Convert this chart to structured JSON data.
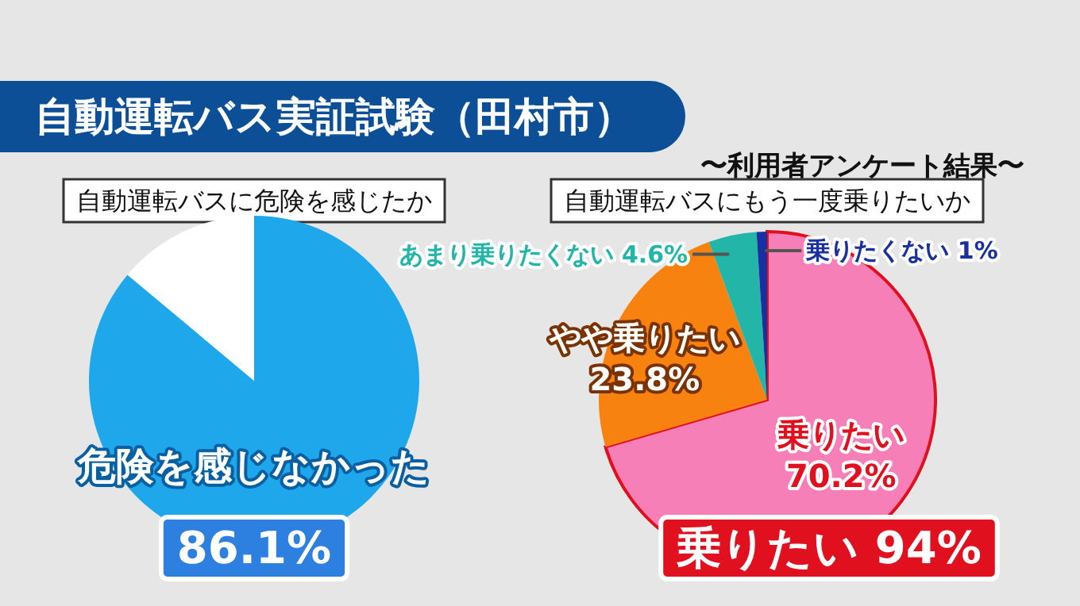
{
  "chart_data": [
    {
      "type": "other",
      "title": "自動運転バス実証試験（田村市）",
      "subtitle": "〜利用者アンケート結果〜"
    },
    {
      "type": "pie",
      "title": "自動運転バスに危険を感じたか",
      "categories": [
        "危険を感じなかった",
        null
      ],
      "values": [
        86.1,
        13.9
      ],
      "colors": [
        "#1ea7ea",
        "#ffffff"
      ],
      "value_labels": [
        "86.1%",
        null
      ]
    },
    {
      "type": "pie",
      "title": "自動運転バスにもう一度乗りたいか",
      "categories": [
        "乗りたい",
        "やや乗りたい",
        "あまり乗りたくない",
        "乗りたくない"
      ],
      "values": [
        70.2,
        23.8,
        4.6,
        1
      ],
      "colors": [
        "#f77fb8",
        "#f7820f",
        "#22b5a8",
        "#1a2fa0"
      ],
      "value_labels": [
        "70.2%",
        "23.8%",
        "4.6%",
        "1%"
      ],
      "annotations": [
        "乗りたい 94%"
      ]
    }
  ]
}
